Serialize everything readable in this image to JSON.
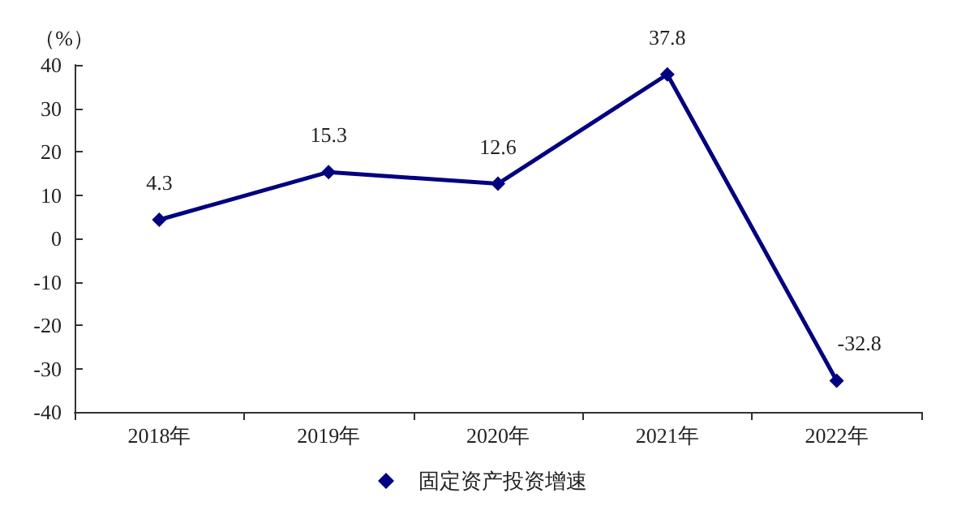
{
  "chart_data": {
    "type": "line",
    "ylabel": "（%）",
    "categories": [
      "2018年",
      "2019年",
      "2020年",
      "2021年",
      "2022年"
    ],
    "series": [
      {
        "name": "固定资产投资增速",
        "color": "#000080",
        "values": [
          4.3,
          15.3,
          12.6,
          37.8,
          -32.8
        ]
      }
    ],
    "ylim": [
      -40,
      40
    ],
    "yticks": [
      -40,
      -30,
      -20,
      -10,
      0,
      10,
      20,
      30,
      40
    ],
    "grid": false,
    "legend": "bottom",
    "marker": "diamond",
    "line_style": "solid",
    "data_labels": true
  }
}
